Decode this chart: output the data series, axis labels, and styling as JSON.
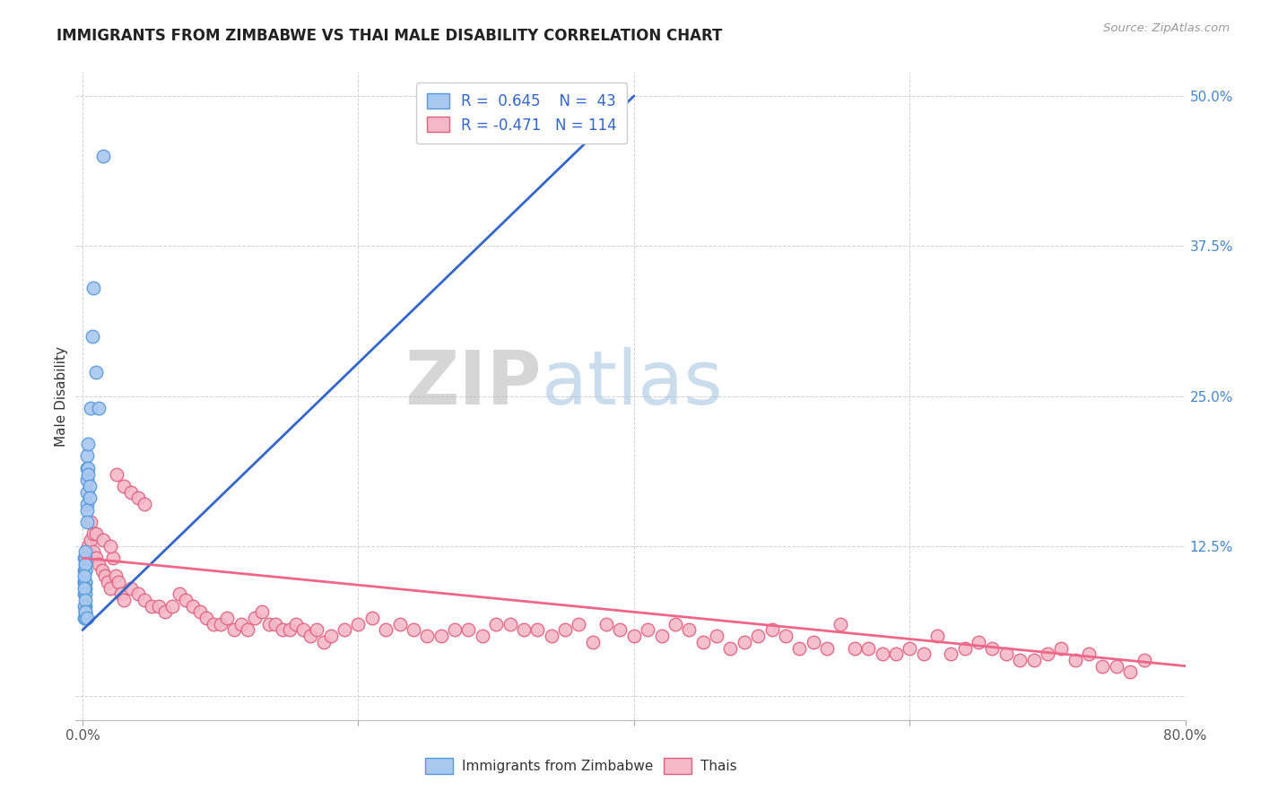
{
  "title": "IMMIGRANTS FROM ZIMBABWE VS THAI MALE DISABILITY CORRELATION CHART",
  "source": "Source: ZipAtlas.com",
  "ylabel": "Male Disability",
  "xlim": [
    -0.005,
    0.8
  ],
  "ylim": [
    -0.02,
    0.52
  ],
  "xtick_vals": [
    0.0,
    0.2,
    0.4,
    0.6,
    0.8
  ],
  "xticklabels": [
    "0.0%",
    "",
    "",
    "",
    "80.0%"
  ],
  "ytick_vals": [
    0.0,
    0.125,
    0.25,
    0.375,
    0.5
  ],
  "yticklabels_right": [
    "",
    "12.5%",
    "25.0%",
    "37.5%",
    "50.0%"
  ],
  "grid_color": "#cccccc",
  "bg_color": "#ffffff",
  "blue_scatter_color": "#A8C8F0",
  "blue_scatter_edge": "#5599DD",
  "pink_scatter_color": "#F5B8C8",
  "pink_scatter_edge": "#E06080",
  "blue_line_color": "#3366CC",
  "pink_line_color": "#EE6688",
  "r_blue": "0.645",
  "n_blue": "43",
  "r_pink": "-0.471",
  "n_pink": "114",
  "legend_label_blue": "Immigrants from Zimbabwe",
  "legend_label_pink": "Thais",
  "title_fontsize": 12,
  "watermark_zip": "ZIP",
  "watermark_atlas": "atlas",
  "blue_points_x": [
    0.001,
    0.001,
    0.001,
    0.001,
    0.001,
    0.002,
    0.002,
    0.002,
    0.002,
    0.002,
    0.002,
    0.002,
    0.002,
    0.002,
    0.003,
    0.003,
    0.003,
    0.003,
    0.003,
    0.004,
    0.004,
    0.004,
    0.005,
    0.005,
    0.006,
    0.007,
    0.008,
    0.01,
    0.012,
    0.015,
    0.001,
    0.001,
    0.002,
    0.002,
    0.003,
    0.003,
    0.002,
    0.002,
    0.001,
    0.001,
    0.002,
    0.002,
    0.003
  ],
  "blue_points_y": [
    0.095,
    0.105,
    0.115,
    0.095,
    0.085,
    0.095,
    0.105,
    0.11,
    0.115,
    0.095,
    0.105,
    0.09,
    0.085,
    0.075,
    0.18,
    0.19,
    0.2,
    0.17,
    0.16,
    0.19,
    0.21,
    0.185,
    0.175,
    0.165,
    0.24,
    0.3,
    0.34,
    0.27,
    0.24,
    0.45,
    0.075,
    0.065,
    0.07,
    0.065,
    0.155,
    0.145,
    0.12,
    0.11,
    0.1,
    0.09,
    0.08,
    0.07,
    0.065
  ],
  "pink_points_x": [
    0.002,
    0.004,
    0.006,
    0.008,
    0.01,
    0.012,
    0.014,
    0.016,
    0.018,
    0.02,
    0.022,
    0.024,
    0.026,
    0.028,
    0.03,
    0.035,
    0.04,
    0.045,
    0.05,
    0.055,
    0.06,
    0.065,
    0.07,
    0.075,
    0.08,
    0.085,
    0.09,
    0.095,
    0.1,
    0.105,
    0.11,
    0.115,
    0.12,
    0.125,
    0.13,
    0.135,
    0.14,
    0.145,
    0.15,
    0.155,
    0.16,
    0.165,
    0.17,
    0.175,
    0.18,
    0.19,
    0.2,
    0.21,
    0.22,
    0.23,
    0.24,
    0.25,
    0.26,
    0.27,
    0.28,
    0.29,
    0.3,
    0.31,
    0.32,
    0.33,
    0.34,
    0.35,
    0.36,
    0.37,
    0.38,
    0.39,
    0.4,
    0.41,
    0.42,
    0.43,
    0.44,
    0.45,
    0.46,
    0.47,
    0.48,
    0.49,
    0.5,
    0.51,
    0.52,
    0.53,
    0.54,
    0.55,
    0.56,
    0.57,
    0.58,
    0.59,
    0.6,
    0.61,
    0.62,
    0.63,
    0.64,
    0.65,
    0.66,
    0.67,
    0.68,
    0.69,
    0.7,
    0.71,
    0.72,
    0.73,
    0.74,
    0.75,
    0.76,
    0.77,
    0.006,
    0.008,
    0.01,
    0.015,
    0.02,
    0.025,
    0.03,
    0.035,
    0.04,
    0.045
  ],
  "pink_points_y": [
    0.115,
    0.125,
    0.13,
    0.12,
    0.115,
    0.11,
    0.105,
    0.1,
    0.095,
    0.09,
    0.115,
    0.1,
    0.095,
    0.085,
    0.08,
    0.09,
    0.085,
    0.08,
    0.075,
    0.075,
    0.07,
    0.075,
    0.085,
    0.08,
    0.075,
    0.07,
    0.065,
    0.06,
    0.06,
    0.065,
    0.055,
    0.06,
    0.055,
    0.065,
    0.07,
    0.06,
    0.06,
    0.055,
    0.055,
    0.06,
    0.055,
    0.05,
    0.055,
    0.045,
    0.05,
    0.055,
    0.06,
    0.065,
    0.055,
    0.06,
    0.055,
    0.05,
    0.05,
    0.055,
    0.055,
    0.05,
    0.06,
    0.06,
    0.055,
    0.055,
    0.05,
    0.055,
    0.06,
    0.045,
    0.06,
    0.055,
    0.05,
    0.055,
    0.05,
    0.06,
    0.055,
    0.045,
    0.05,
    0.04,
    0.045,
    0.05,
    0.055,
    0.05,
    0.04,
    0.045,
    0.04,
    0.06,
    0.04,
    0.04,
    0.035,
    0.035,
    0.04,
    0.035,
    0.05,
    0.035,
    0.04,
    0.045,
    0.04,
    0.035,
    0.03,
    0.03,
    0.035,
    0.04,
    0.03,
    0.035,
    0.025,
    0.025,
    0.02,
    0.03,
    0.145,
    0.135,
    0.135,
    0.13,
    0.125,
    0.185,
    0.175,
    0.17,
    0.165,
    0.16
  ],
  "blue_trend_x": [
    0.0,
    0.4
  ],
  "blue_trend_y": [
    0.055,
    0.5
  ],
  "pink_trend_x": [
    0.0,
    0.8
  ],
  "pink_trend_y": [
    0.115,
    0.025
  ]
}
